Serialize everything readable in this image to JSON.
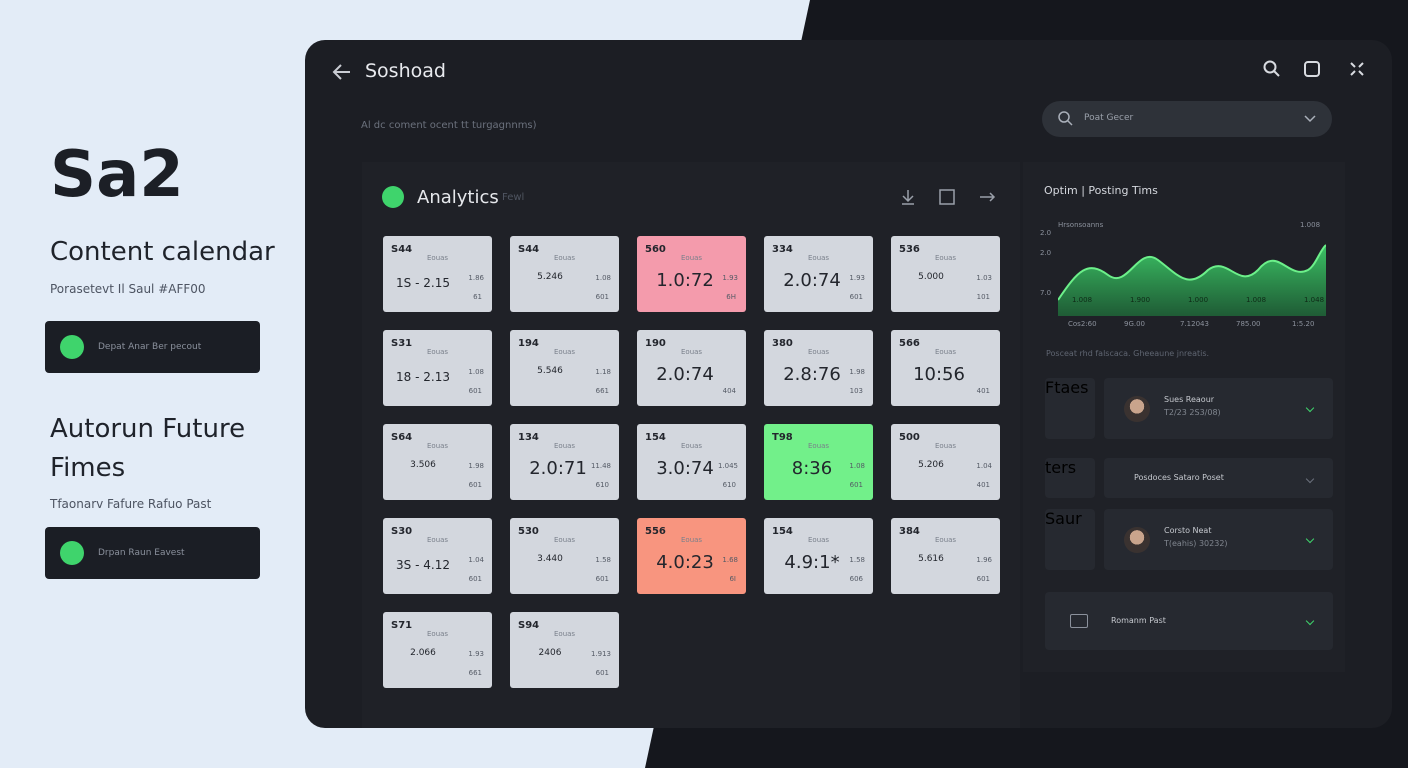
{
  "left": {
    "title": "Sa2",
    "sections": [
      {
        "heading": "Content calendar",
        "sub": "Porasetevt Il Saul #AFF00",
        "button": "Depat Anar Ber pecout"
      },
      {
        "heading": "Autorun Future Fimes",
        "sub": "Tfaonarv Fafure Rafuo Past",
        "button": "Drpan Raun Eavest"
      }
    ]
  },
  "window": {
    "title": "Soshoad",
    "subtitle": "Al dc coment ocent tt turgagnnms)",
    "search": "Poat Gecer"
  },
  "analytics": {
    "title": "Analytics",
    "tag": "Fewl",
    "cells": [
      {
        "id": "S44",
        "tag": "Eouas",
        "main": "1S - 2.15",
        "side": "1.86",
        "foot": "61",
        "tone": "plain",
        "style": "medium"
      },
      {
        "id": "S44",
        "tag": "Eouas",
        "main": "5.246",
        "side": "1.08",
        "foot": "601",
        "tone": "plain",
        "style": "small"
      },
      {
        "id": "560",
        "tag": "Eouas",
        "main": "1.0:72",
        "side": "1.93",
        "foot": "6H",
        "tone": "pink",
        "style": "large"
      },
      {
        "id": "334",
        "tag": "Eouas",
        "main": "2.0:74",
        "side": "1.93",
        "foot": "601",
        "tone": "plain",
        "style": "large"
      },
      {
        "id": "536",
        "tag": "Eouas",
        "main": "5.000",
        "side": "1.03",
        "foot": "101",
        "tone": "plain",
        "style": "small"
      },
      {
        "id": "S31",
        "tag": "Eouas",
        "main": "18 - 2.13",
        "side": "1.08",
        "foot": "601",
        "tone": "plain",
        "style": "medium"
      },
      {
        "id": "194",
        "tag": "Eouas",
        "main": "5.546",
        "side": "1.18",
        "foot": "661",
        "tone": "plain",
        "style": "small"
      },
      {
        "id": "190",
        "tag": "Eouas",
        "main": "2.0:74",
        "side": "",
        "foot": "404",
        "tone": "plain",
        "style": "large"
      },
      {
        "id": "380",
        "tag": "Eouas",
        "main": "2.8:76",
        "side": "1.98",
        "foot": "103",
        "tone": "plain",
        "style": "large"
      },
      {
        "id": "566",
        "tag": "Eouas",
        "main": "10:56",
        "side": "",
        "foot": "401",
        "tone": "plain",
        "style": "large"
      },
      {
        "id": "S64",
        "tag": "Eouas",
        "main": "3.506",
        "side": "1.98",
        "foot": "601",
        "tone": "plain",
        "style": "small"
      },
      {
        "id": "134",
        "tag": "Eouas",
        "main": "2.0:71",
        "side": "11.48",
        "foot": "610",
        "tone": "plain",
        "style": "large"
      },
      {
        "id": "154",
        "tag": "Eouas",
        "main": "3.0:74",
        "side": "1.045",
        "foot": "610",
        "tone": "plain",
        "style": "large"
      },
      {
        "id": "T98",
        "tag": "Eouas",
        "main": "8:36",
        "side": "1.08",
        "foot": "601",
        "tone": "green",
        "style": "large"
      },
      {
        "id": "500",
        "tag": "Eouas",
        "main": "5.206",
        "side": "1.04",
        "foot": "401",
        "tone": "plain",
        "style": "small"
      },
      {
        "id": "S30",
        "tag": "Eouas",
        "main": "3S - 4.12",
        "side": "1.04",
        "foot": "601",
        "tone": "plain",
        "style": "medium"
      },
      {
        "id": "530",
        "tag": "Eouas",
        "main": "3.440",
        "side": "1.58",
        "foot": "601",
        "tone": "plain",
        "style": "small"
      },
      {
        "id": "556",
        "tag": "Eouas",
        "main": "4.0:23",
        "side": "1.68",
        "foot": "6I",
        "tone": "salmon",
        "style": "large"
      },
      {
        "id": "154",
        "tag": "Eouas",
        "main": "4.9:1*",
        "side": "1.58",
        "foot": "606",
        "tone": "plain",
        "style": "large"
      },
      {
        "id": "384",
        "tag": "Eouas",
        "main": "5.616",
        "side": "1.96",
        "foot": "601",
        "tone": "plain",
        "style": "small"
      },
      {
        "id": "S71",
        "tag": "Eouas",
        "main": "2.066",
        "side": "1.93",
        "foot": "661",
        "tone": "plain",
        "style": "small"
      },
      {
        "id": "S94",
        "tag": "Eouas",
        "main": "2406",
        "side": "1.913",
        "foot": "601",
        "tone": "plain",
        "style": "small"
      }
    ]
  },
  "posting": {
    "title": "Optim | Posting Tims",
    "legend": "Hrsonsoanns",
    "peak": "1.008",
    "y_labels": [
      "2.0",
      "2.0",
      "7.0"
    ],
    "bar_labels": [
      "1.008",
      "1.900",
      "1.000",
      "1.008",
      "1.048"
    ],
    "x_labels": [
      "Cos2:60",
      "9G.00",
      "7.12043",
      "785.00",
      "1:5.20"
    ],
    "note": "Posceat rhd falscaca. Gheeaune jnreatis.",
    "items": [
      {
        "icon_label": "Ftaes",
        "name": "Sues Reaour",
        "sub": "T2/23 2S3/08)"
      },
      {
        "icon_label": "ters",
        "name": "Posdoces Sataro Poset"
      },
      {
        "icon_label": "Saur",
        "name": "Corsto Neat",
        "sub": "T(eahis) 30232)"
      },
      {
        "name": "Romanm Past"
      }
    ]
  }
}
